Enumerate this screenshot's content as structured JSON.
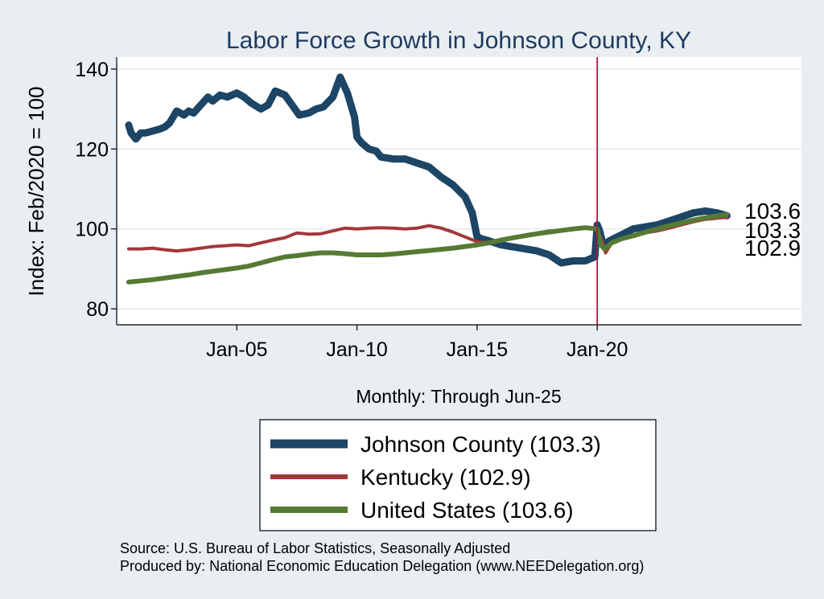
{
  "chart_data": {
    "type": "line",
    "title": "Labor Force Growth in Johnson  County, KY",
    "ylabel": "Index: Feb/2020 = 100",
    "xlabel": "Monthly: Through Jun-25",
    "ylim": [
      76,
      143
    ],
    "xlim": [
      2000.0,
      2028.5
    ],
    "yticks": [
      80,
      100,
      120,
      140
    ],
    "xticks": [
      {
        "label": "Jan-05",
        "x": 2005.0
      },
      {
        "label": "Jan-10",
        "x": 2010.0
      },
      {
        "label": "Jan-15",
        "x": 2015.0
      },
      {
        "label": "Jan-20",
        "x": 2020.0
      }
    ],
    "vline": {
      "x": 2020.0,
      "color": "#b3123a"
    },
    "grid": true,
    "end_labels": [
      "103.6",
      "103.3",
      "102.9"
    ],
    "series": [
      {
        "name": "Johnson  County",
        "legend_label": "Johnson  County (103.3)",
        "color": "#1c4566",
        "width": 9,
        "x": [
          2000.5,
          2000.6,
          2000.8,
          2001.0,
          2001.2,
          2001.5,
          2001.8,
          2002.0,
          2002.2,
          2002.5,
          2002.8,
          2003.0,
          2003.2,
          2003.5,
          2003.8,
          2004.0,
          2004.3,
          2004.6,
          2005.0,
          2005.3,
          2005.6,
          2006.0,
          2006.3,
          2006.6,
          2007.0,
          2007.3,
          2007.6,
          2008.0,
          2008.3,
          2008.6,
          2009.0,
          2009.3,
          2009.6,
          2009.9,
          2010.0,
          2010.2,
          2010.5,
          2010.8,
          2011.0,
          2011.5,
          2012.0,
          2012.5,
          2013.0,
          2013.5,
          2014.0,
          2014.5,
          2014.8,
          2015.0,
          2015.2,
          2015.5,
          2016.0,
          2016.5,
          2017.0,
          2017.5,
          2018.0,
          2018.5,
          2019.0,
          2019.5,
          2019.9,
          2020.0,
          2020.1,
          2020.2,
          2020.3,
          2020.5,
          2021.0,
          2021.5,
          2022.0,
          2022.5,
          2023.0,
          2023.5,
          2024.0,
          2024.5,
          2025.0,
          2025.4
        ],
        "values": [
          126,
          124,
          122.5,
          124,
          124,
          124.5,
          125,
          125.5,
          126.5,
          129.5,
          128.5,
          129.5,
          129,
          131,
          133,
          132,
          133.5,
          133,
          134,
          133,
          131.5,
          130,
          131,
          134.5,
          133.5,
          131,
          128.5,
          129,
          130,
          130.5,
          133,
          138,
          134,
          128,
          123,
          121.5,
          120,
          119.5,
          118,
          117.5,
          117.5,
          116.5,
          115.5,
          113,
          111,
          108,
          104,
          98,
          97.5,
          97,
          96,
          95.5,
          95,
          94.5,
          93.5,
          91.5,
          92,
          92,
          93,
          101,
          99.5,
          97,
          96,
          97,
          98.5,
          100,
          100.5,
          101,
          102,
          103,
          104,
          104.5,
          104,
          103.3
        ]
      },
      {
        "name": "Kentucky",
        "legend_label": "Kentucky (102.9)",
        "color": "#a3383c",
        "width": 4,
        "x": [
          2000.5,
          2001.0,
          2001.5,
          2002.0,
          2002.5,
          2003.0,
          2003.5,
          2004.0,
          2004.5,
          2005.0,
          2005.5,
          2006.0,
          2006.5,
          2007.0,
          2007.5,
          2008.0,
          2008.5,
          2009.0,
          2009.5,
          2010.0,
          2010.5,
          2011.0,
          2011.5,
          2012.0,
          2012.5,
          2013.0,
          2013.5,
          2014.0,
          2014.5,
          2015.0,
          2015.5,
          2016.0,
          2016.5,
          2017.0,
          2017.5,
          2018.0,
          2018.5,
          2019.0,
          2019.5,
          2020.0,
          2020.2,
          2020.35,
          2020.6,
          2021.0,
          2021.5,
          2022.0,
          2022.5,
          2023.0,
          2023.5,
          2024.0,
          2024.5,
          2025.0,
          2025.4
        ],
        "values": [
          95,
          95,
          95.2,
          94.8,
          94.5,
          94.8,
          95.2,
          95.6,
          95.8,
          96,
          95.8,
          96.5,
          97.2,
          97.8,
          99,
          98.7,
          98.8,
          99.5,
          100.2,
          100,
          100.2,
          100.3,
          100.2,
          100,
          100.2,
          100.8,
          100.2,
          99.2,
          98,
          96.8,
          96.5,
          97,
          97.8,
          98.5,
          99,
          99.5,
          99.6,
          99.8,
          100.2,
          100,
          97,
          94,
          96.5,
          97.5,
          98.3,
          99,
          99.5,
          100.2,
          101,
          101.8,
          102.4,
          102.7,
          102.9
        ]
      },
      {
        "name": "United States",
        "legend_label": "United States (103.6)",
        "color": "#567a34",
        "width": 6,
        "x": [
          2000.5,
          2001.0,
          2001.5,
          2002.0,
          2002.5,
          2003.0,
          2003.5,
          2004.0,
          2004.5,
          2005.0,
          2005.5,
          2006.0,
          2006.5,
          2007.0,
          2007.5,
          2008.0,
          2008.5,
          2009.0,
          2009.5,
          2010.0,
          2010.5,
          2011.0,
          2011.5,
          2012.0,
          2012.5,
          2013.0,
          2013.5,
          2014.0,
          2014.5,
          2015.0,
          2015.5,
          2016.0,
          2016.5,
          2017.0,
          2017.5,
          2018.0,
          2018.5,
          2019.0,
          2019.5,
          2020.0,
          2020.15,
          2020.3,
          2020.6,
          2021.0,
          2021.5,
          2022.0,
          2022.5,
          2023.0,
          2023.5,
          2024.0,
          2024.5,
          2025.0,
          2025.4
        ],
        "values": [
          86.7,
          87,
          87.3,
          87.7,
          88.1,
          88.5,
          89,
          89.4,
          89.8,
          90.2,
          90.7,
          91.5,
          92.3,
          93,
          93.3,
          93.7,
          94,
          94,
          93.8,
          93.5,
          93.5,
          93.5,
          93.7,
          94,
          94.3,
          94.6,
          94.9,
          95.2,
          95.6,
          96,
          96.5,
          97.2,
          97.8,
          98.3,
          98.8,
          99.2,
          99.6,
          100,
          100.3,
          100,
          96,
          95,
          96.5,
          97.5,
          98.3,
          99.2,
          100,
          100.8,
          101.5,
          102.2,
          102.8,
          103.3,
          103.6
        ]
      }
    ]
  },
  "footer": {
    "source": "Source: U.S. Bureau of Labor Statistics, Seasonally Adjusted",
    "produced": "Produced by: National Economic Education Delegation (www.NEEDelegation.org)"
  }
}
